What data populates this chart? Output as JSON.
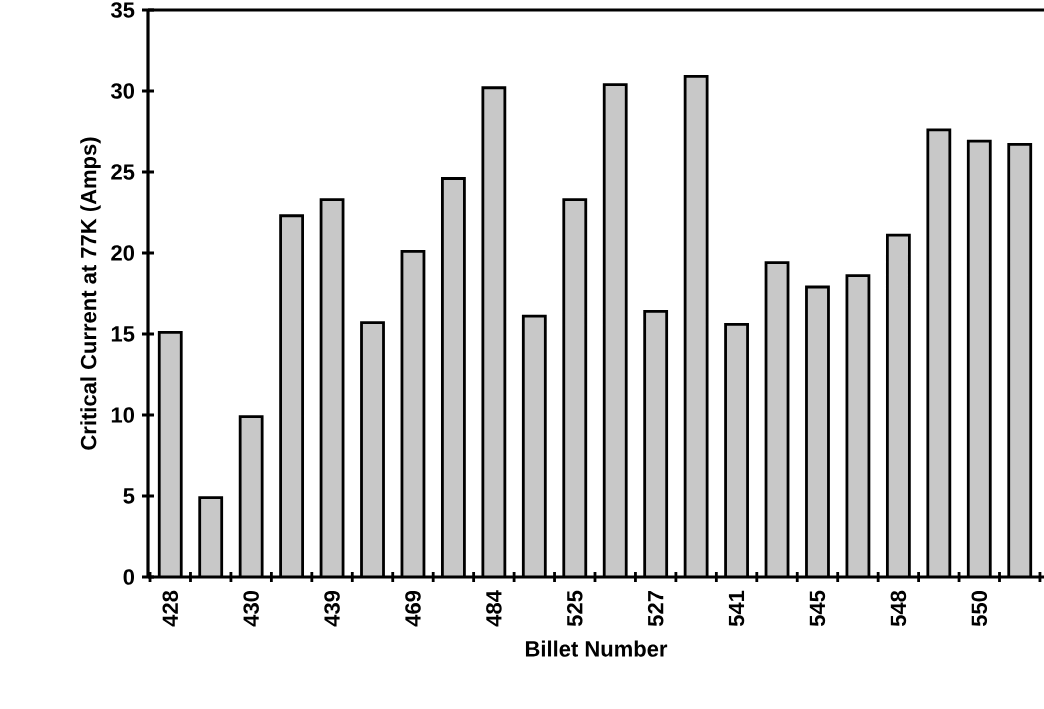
{
  "chart_data": {
    "type": "bar",
    "xlabel": "Billet Number",
    "ylabel": "Critical Current at 77K (Amps)",
    "categories": [
      "428",
      null,
      "430",
      null,
      "439",
      null,
      "469",
      null,
      "484",
      null,
      "525",
      null,
      "527",
      null,
      "541",
      null,
      "545",
      null,
      "548",
      null,
      "550",
      null
    ],
    "values": [
      15.1,
      4.9,
      9.9,
      22.3,
      23.3,
      15.7,
      20.1,
      24.6,
      30.2,
      16.1,
      23.3,
      30.4,
      16.4,
      30.9,
      15.6,
      19.4,
      17.9,
      18.6,
      21.1,
      27.6,
      26.9,
      26.7
    ],
    "color": "#c8c8c8",
    "ylim": [
      0,
      35
    ],
    "yticks": [
      0,
      5,
      10,
      15,
      20,
      25,
      30,
      35
    ]
  }
}
